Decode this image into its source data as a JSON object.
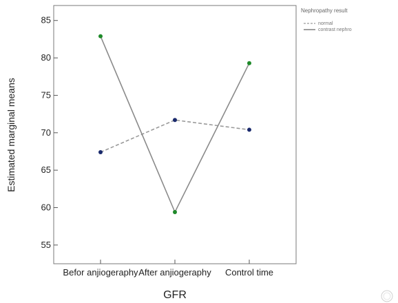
{
  "chart_data": {
    "type": "line",
    "xlabel": "GFR",
    "ylabel": "Estimated marginal means",
    "categories": [
      "Befor anjiogeraphy",
      "After anjiogeraphy",
      "Control time"
    ],
    "ylim": [
      52.5,
      87
    ],
    "yticks": [
      55,
      60,
      65,
      70,
      75,
      80,
      85
    ],
    "legend": {
      "title": "Nephropathy result",
      "position": "top-right, outside plot"
    },
    "series": [
      {
        "name": "normal",
        "style": "dashed",
        "color": "#9a9a9a",
        "marker_color": "#1a2a6c",
        "values": [
          67.4,
          71.7,
          70.4
        ]
      },
      {
        "name": "contrast nephro",
        "style": "solid",
        "color": "#8a8a8a",
        "marker_color": "#1f8a2a",
        "values": [
          82.9,
          59.4,
          79.3
        ]
      }
    ],
    "grid": false
  }
}
